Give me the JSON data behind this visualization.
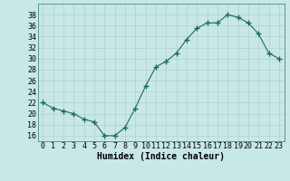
{
  "x": [
    0,
    1,
    2,
    3,
    4,
    5,
    6,
    7,
    8,
    9,
    10,
    11,
    12,
    13,
    14,
    15,
    16,
    17,
    18,
    19,
    20,
    21,
    22,
    23
  ],
  "y": [
    22,
    21,
    20.5,
    20,
    19,
    18.5,
    16,
    16,
    17.5,
    21,
    25,
    28.5,
    29.5,
    31,
    33.5,
    35.5,
    36.5,
    36.5,
    38,
    37.5,
    36.5,
    34.5,
    31,
    30
  ],
  "line_color": "#1a6b5a",
  "marker_color": "#1a6b5a",
  "bg_color": "#c8e8e8",
  "grid_color": "#b0d0d0",
  "xlabel": "Humidex (Indice chaleur)",
  "xlabel_fontsize": 7,
  "tick_fontsize": 6,
  "ylim": [
    15,
    40
  ],
  "yticks": [
    16,
    18,
    20,
    22,
    24,
    26,
    28,
    30,
    32,
    34,
    36,
    38
  ],
  "xtick_labels": [
    "0",
    "1",
    "2",
    "3",
    "4",
    "5",
    "6",
    "7",
    "8",
    "9",
    "10",
    "11",
    "12",
    "13",
    "14",
    "15",
    "16",
    "17",
    "18",
    "19",
    "20",
    "21",
    "22",
    "23"
  ]
}
